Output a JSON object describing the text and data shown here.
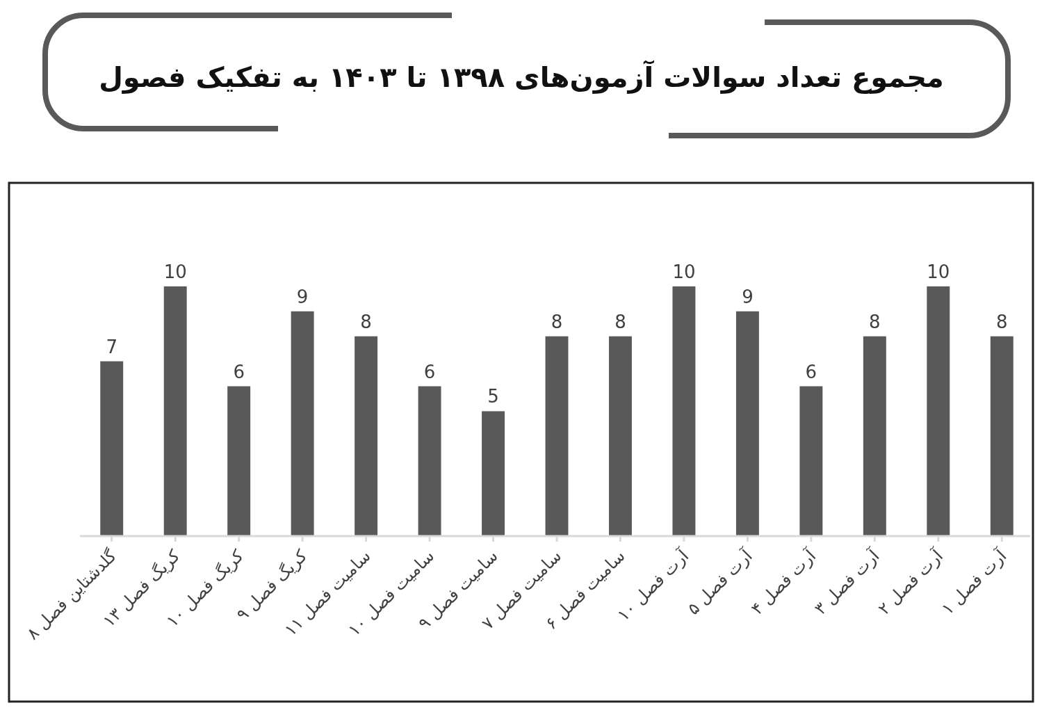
{
  "chart_data": {
    "type": "bar",
    "title": "مجموع تعداد سوالات آزمون‌های ۱۳۹۸ تا ۱۴۰۳ به تفکیک فصول",
    "categories": [
      "گلدشتاین فصل ۸",
      "کریگ فصل ۱۳",
      "کریگ فصل ۱۰",
      "کریگ فصل ۹",
      "سامیت فصل ۱۱",
      "سامیت فصل ۱۰",
      "سامیت فصل ۹",
      "سامیت فصل ۷",
      "سامیت فصل ۶",
      "آرت فصل ۱۰",
      "آرت فصل ۵",
      "آرت فصل ۴",
      "آرت فصل ۳",
      "آرت فصل ۲",
      "آرت فصل ۱"
    ],
    "values": [
      7,
      10,
      6,
      9,
      8,
      6,
      5,
      8,
      8,
      10,
      9,
      6,
      8,
      10,
      8
    ],
    "color": "#595959",
    "data_labels": true
  }
}
